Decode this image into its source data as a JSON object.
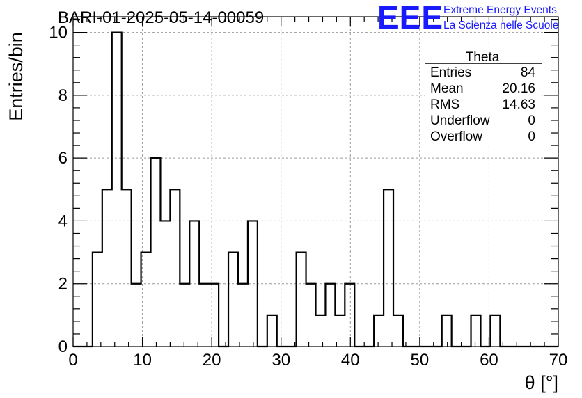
{
  "chart_data": {
    "type": "bar",
    "title": "BARI-01-2025-05-14-00059",
    "xlabel": "θ [°]",
    "ylabel": "Entries/bin",
    "xlim": [
      0,
      70
    ],
    "ylim": [
      0,
      10.5
    ],
    "grid": true,
    "bin_width": 1.4,
    "bins_start": 0,
    "x_ticks": [
      "0",
      "10",
      "20",
      "30",
      "40",
      "50",
      "60",
      "70"
    ],
    "y_ticks": [
      "0",
      "2",
      "4",
      "6",
      "8",
      "10"
    ],
    "values": [
      0,
      0,
      3,
      5,
      10,
      5,
      2,
      3,
      6,
      4,
      5,
      2,
      4,
      2,
      2,
      0,
      3,
      2,
      4,
      0,
      1,
      0,
      0,
      3,
      2,
      1,
      2,
      1,
      2,
      0,
      0,
      1,
      5,
      1,
      0,
      0,
      0,
      0,
      1,
      0,
      0,
      1,
      0,
      1,
      0,
      0,
      0,
      0,
      0,
      0
    ],
    "stats_box": {
      "title": "Theta",
      "rows": [
        {
          "label": "Entries",
          "value": "84"
        },
        {
          "label": "Mean",
          "value": "20.16"
        },
        {
          "label": "RMS",
          "value": "14.63"
        },
        {
          "label": "Underflow",
          "value": "0"
        },
        {
          "label": "Overflow",
          "value": "0"
        }
      ]
    }
  },
  "logo": {
    "mark": "EEE",
    "line1": "Extreme Energy Events",
    "line2": "La Scienza nelle Scuole",
    "color": "#1a1aff"
  }
}
